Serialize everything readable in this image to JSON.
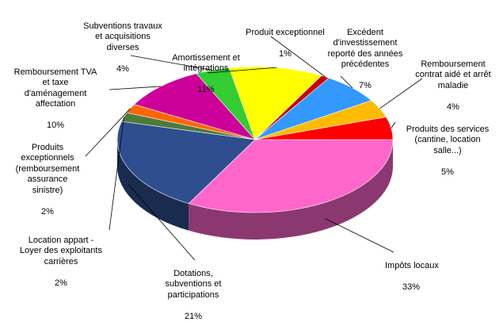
{
  "chart_data": {
    "type": "pie",
    "variant": "3d",
    "title": "",
    "slices": [
      {
        "category": "Impôts locaux",
        "value": 33,
        "label": "33%",
        "color": "#ff66cc"
      },
      {
        "category": "Dotations,\nsubventions et\nparticipations",
        "value": 21,
        "label": "21%",
        "color": "#2e4e8f"
      },
      {
        "category": "Location appart -\nLoyer des exploitants\ncarrières",
        "value": 2,
        "label": "2%",
        "color": "#4f7a3a"
      },
      {
        "category": "Produits\nexceptionnels\n(remboursement\nassurance\nsinistre)",
        "value": 2,
        "label": "2%",
        "color": "#ff6600"
      },
      {
        "category": "Remboursement  TVA\net taxe\nd'aménagement\naffectation",
        "value": 10,
        "label": "10%",
        "color": "#cc0099"
      },
      {
        "category": "Subventions travaux\net acquisitions\ndiverses",
        "value": 4,
        "label": "4%",
        "color": "#33cc33"
      },
      {
        "category": "Amortissement et\nintégrations",
        "value": 11,
        "label": "11%",
        "color": "#ffff00"
      },
      {
        "category": "Produit exceptionnel",
        "value": 1,
        "label": "1%",
        "color": "#cc0000"
      },
      {
        "category": "Excédent\nd'investissement\nreporté des années\nprécédentes",
        "value": 7,
        "label": "7%",
        "color": "#3399ff"
      },
      {
        "category": "Remboursement\ncontrat aidé et arrêt\nmaladie",
        "value": 4,
        "label": "4%",
        "color": "#ffbb00"
      },
      {
        "category": "Produits des services\n(cantine, location\nsalle...)",
        "value": 5,
        "label": "5%",
        "color": "#ff0000"
      }
    ]
  }
}
